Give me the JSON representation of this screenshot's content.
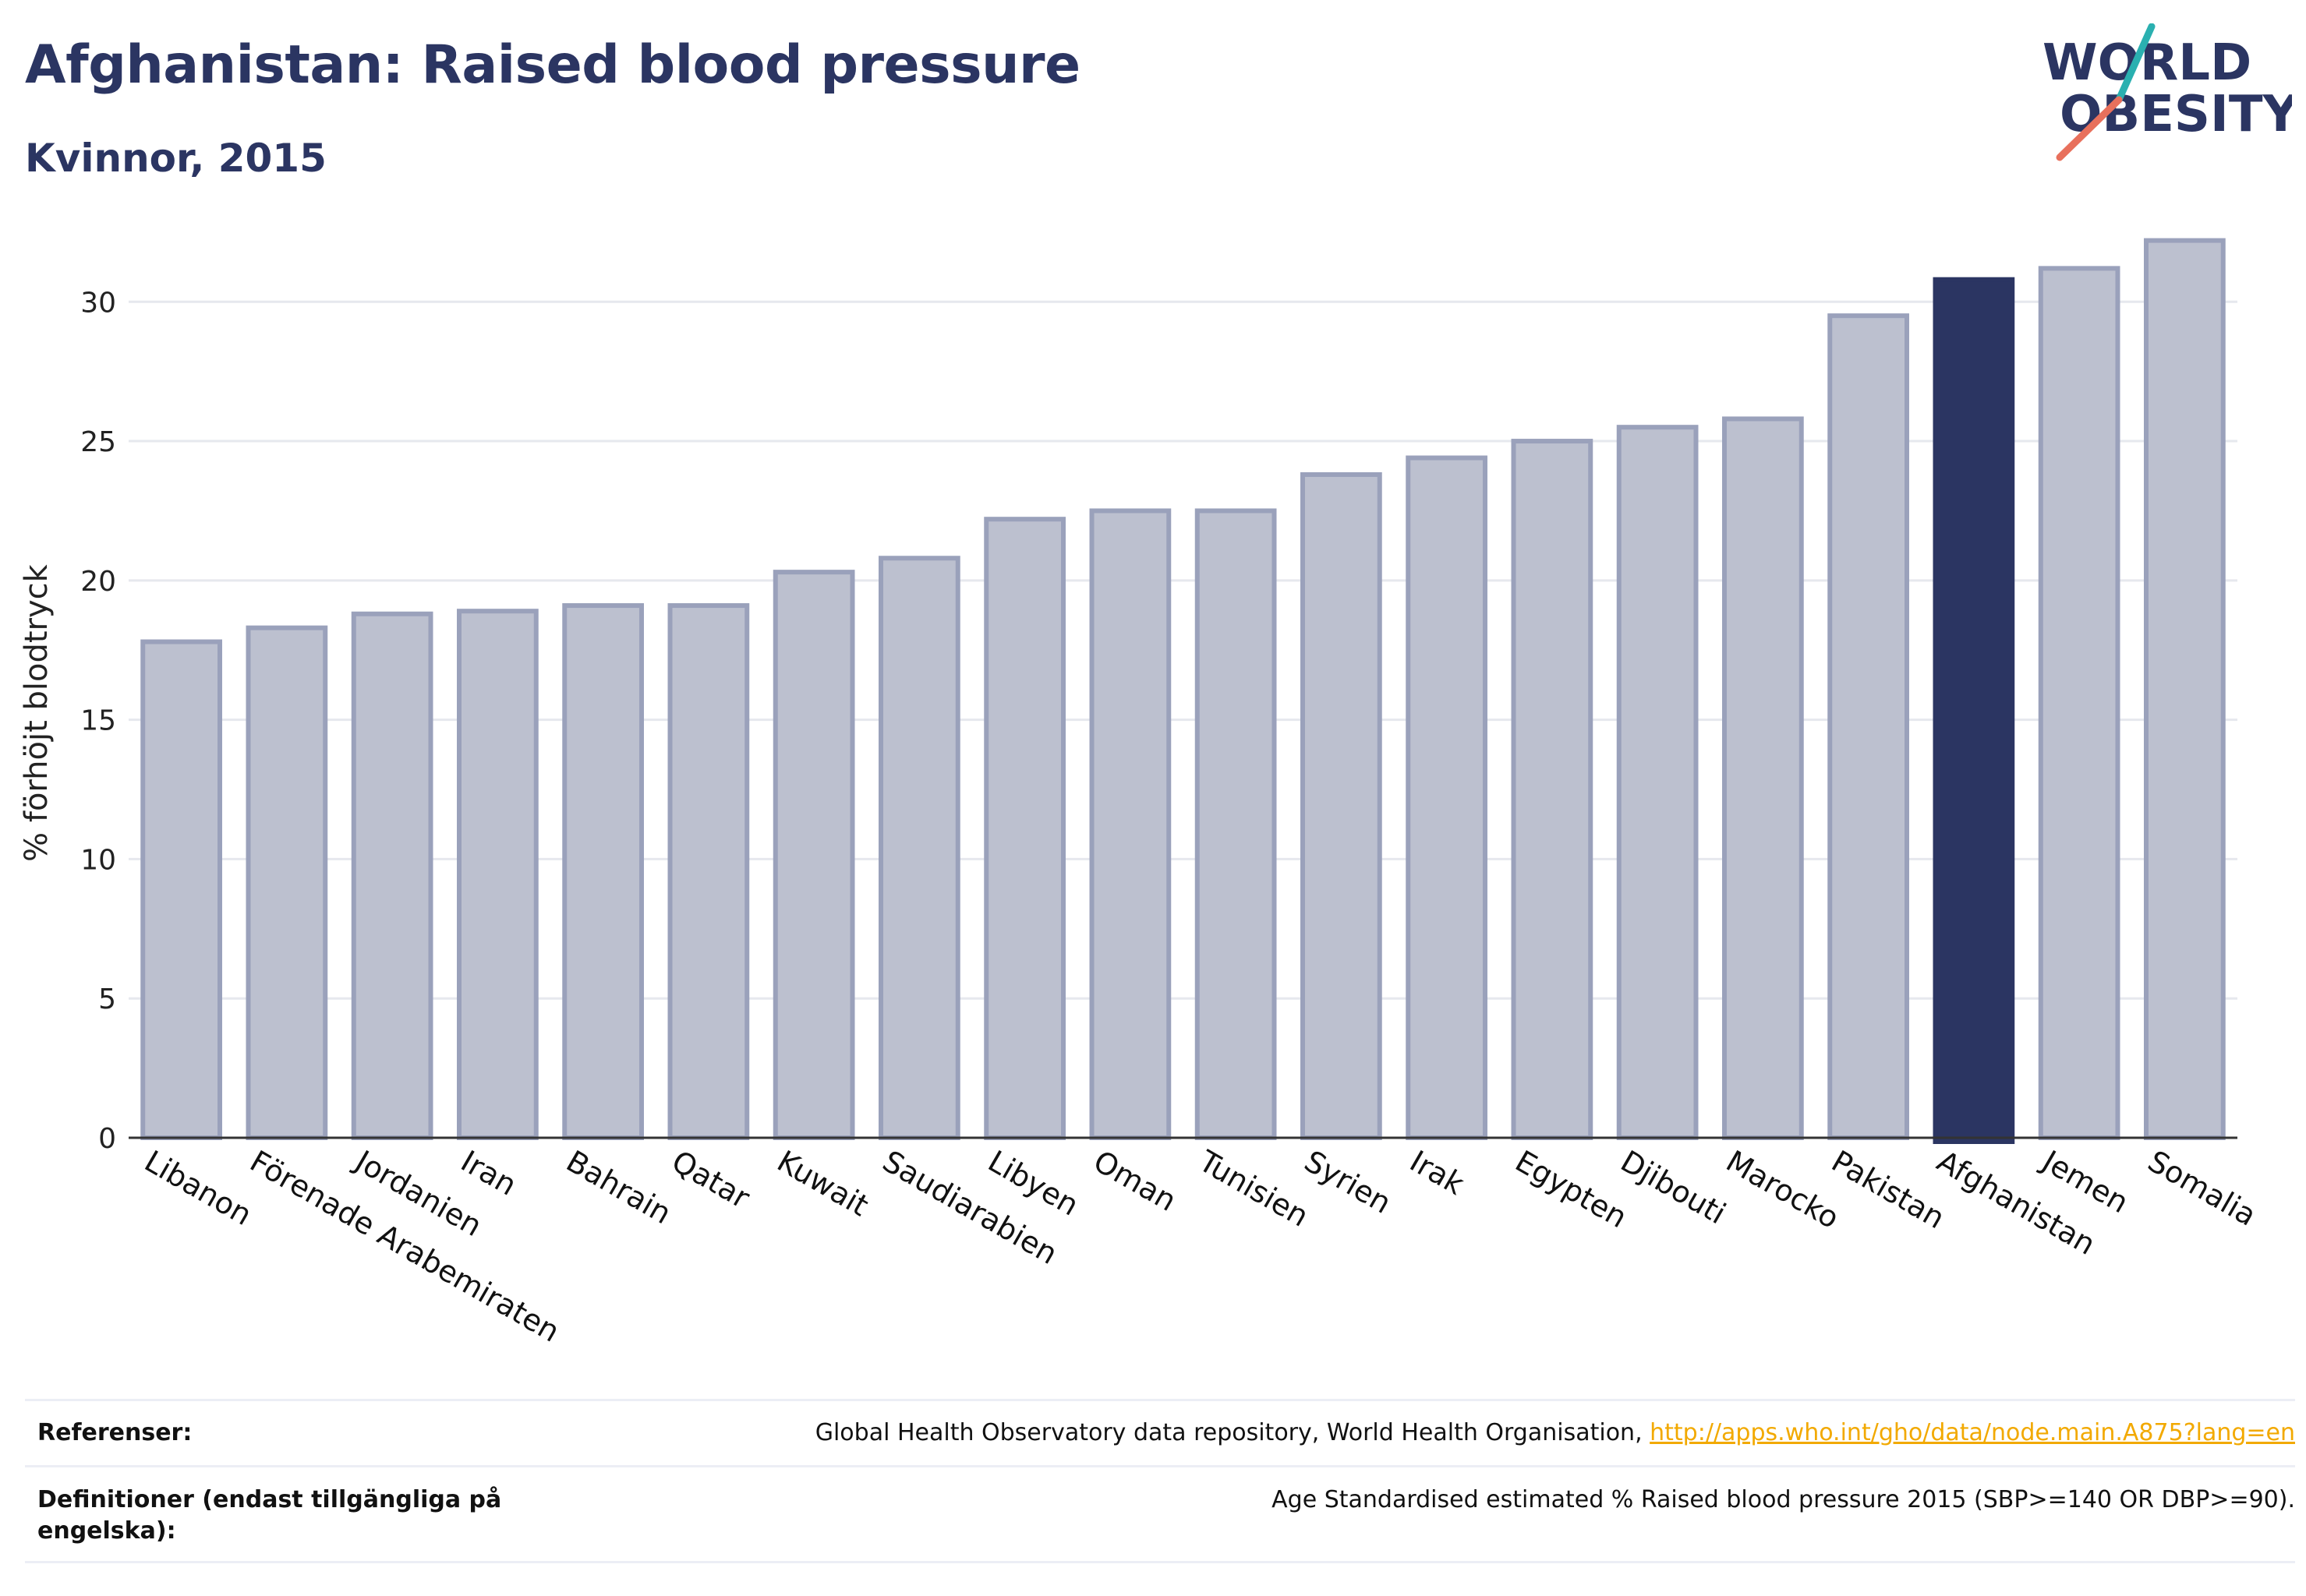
{
  "header": {
    "title": "Afghanistan: Raised blood pressure",
    "subtitle": "Kvinnor, 2015"
  },
  "logo": {
    "line1": "WORLD",
    "line2": "OBESITY",
    "colors": {
      "text": "#2b3562",
      "slash_teal": "#2ab0b0",
      "slash_coral": "#e8705c"
    }
  },
  "chart_data": {
    "type": "bar",
    "title": "Afghanistan: Raised blood pressure",
    "subtitle": "Kvinnor, 2015",
    "ylabel": "% förhöjt blodtryck",
    "xlabel": "",
    "ylim": [
      0,
      33
    ],
    "yticks": [
      0,
      5,
      10,
      15,
      20,
      25,
      30
    ],
    "grid": true,
    "highlight": "Afghanistan",
    "colors": {
      "bar": "#bcc0cf",
      "bar_edge": "#9aa1bb",
      "highlight": "#2b3562",
      "grid": "#e6e8ee",
      "axis": "#333333"
    },
    "categories": [
      "Libanon",
      "Förenade Arabemiraten",
      "Jordanien",
      "Iran",
      "Bahrain",
      "Qatar",
      "Kuwait",
      "Saudiarabien",
      "Libyen",
      "Oman",
      "Tunisien",
      "Syrien",
      "Irak",
      "Egypten",
      "Djibouti",
      "Marocko",
      "Pakistan",
      "Afghanistan",
      "Jemen",
      "Somalia"
    ],
    "values": [
      17.8,
      18.3,
      18.8,
      18.9,
      19.1,
      19.1,
      20.3,
      20.8,
      22.2,
      22.5,
      22.5,
      23.8,
      24.4,
      25.0,
      25.5,
      25.8,
      29.5,
      30.8,
      31.2,
      32.2
    ]
  },
  "references": {
    "label": "Referenser:",
    "text": "Global Health Observatory data repository, World Health Organisation, ",
    "link": "http://apps.who.int/gho/data/node.main.A875?lang=en"
  },
  "definitions": {
    "label": "Definitioner (endast tillgängliga på engelska):",
    "text": "Age Standardised estimated % Raised blood pressure 2015 (SBP>=140 OR DBP>=90)."
  }
}
